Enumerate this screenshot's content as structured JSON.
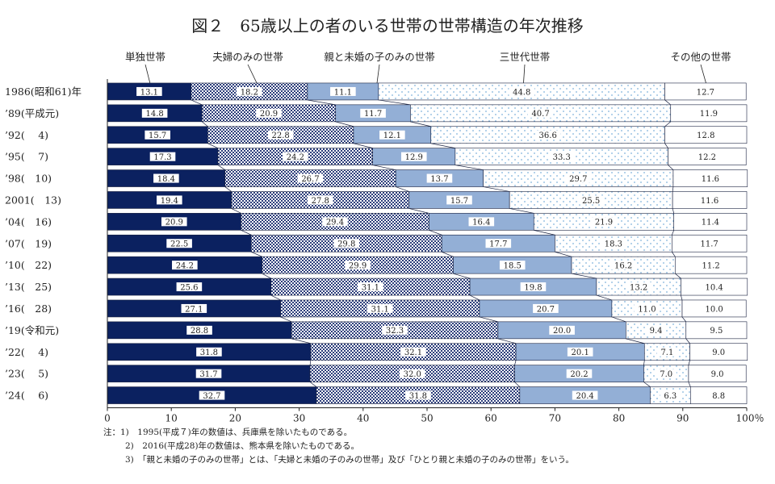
{
  "chart_data": {
    "type": "bar",
    "orientation": "horizontal-stacked-percent",
    "title": "図２　65歳以上の者のいる世帯の世帯構造の年次推移",
    "xlim": [
      0,
      100
    ],
    "x_ticks": [
      "0",
      "10",
      "20",
      "30",
      "40",
      "50",
      "60",
      "70",
      "80",
      "90",
      "100％"
    ],
    "categories": [
      "1986(昭和61)年",
      "’89(平成元)",
      "’92(　 4)",
      "’95(　 7)",
      "’98(　10)",
      "2001(　13)",
      "’04(　16)",
      "’07(　19)",
      "’10(　22)",
      "’13(　25)",
      "’16(　28)",
      "’19(令和元)",
      "’22(　 4)",
      "’23(　 5)",
      "’24(　 6)"
    ],
    "series": [
      {
        "name": "単独世帯",
        "values": [
          "13.1",
          "14.8",
          "15.7",
          "17.3",
          "18.4",
          "19.4",
          "20.9",
          "22.5",
          "24.2",
          "25.6",
          "27.1",
          "28.8",
          "31.8",
          "31.7",
          "32.7"
        ]
      },
      {
        "name": "夫婦のみの世帯",
        "values": [
          "18.2",
          "20.9",
          "22.8",
          "24.2",
          "26.7",
          "27.8",
          "29.4",
          "29.8",
          "29.9",
          "31.1",
          "31.1",
          "32.3",
          "32.1",
          "32.0",
          "31.8"
        ]
      },
      {
        "name": "親と未婚の子のみの世帯",
        "values": [
          "11.1",
          "11.7",
          "12.1",
          "12.9",
          "13.7",
          "15.7",
          "16.4",
          "17.7",
          "18.5",
          "19.8",
          "20.7",
          "20.0",
          "20.1",
          "20.2",
          "20.4"
        ]
      },
      {
        "name": "三世代世帯",
        "values": [
          "44.8",
          "40.7",
          "36.6",
          "33.3",
          "29.7",
          "25.5",
          "21.9",
          "18.3",
          "16.2",
          "13.2",
          "11.0",
          "9.4",
          "7.1",
          "7.0",
          "6.3"
        ]
      },
      {
        "name": "その他の世帯",
        "values": [
          "12.7",
          "11.9",
          "12.8",
          "12.2",
          "11.6",
          "11.6",
          "11.4",
          "11.7",
          "11.2",
          "10.4",
          "10.0",
          "9.5",
          "9.0",
          "9.0",
          "8.8"
        ]
      }
    ],
    "colors": [
      "#0b2160",
      "#2c3d7a",
      "#93afd6",
      "#7fb2dc",
      "#ffffff"
    ],
    "notes": [
      "注：1)　1995(平成７)年の数値は、兵庫県を除いたものである。",
      "2)　2016(平成28)年の数値は、熊本県を除いたものである。",
      "3)　「親と未婚の子のみの世帯」とは、「夫婦と未婚の子のみの世帯」及び「ひとり親と未婚の子のみの世帯」をいう。"
    ]
  }
}
